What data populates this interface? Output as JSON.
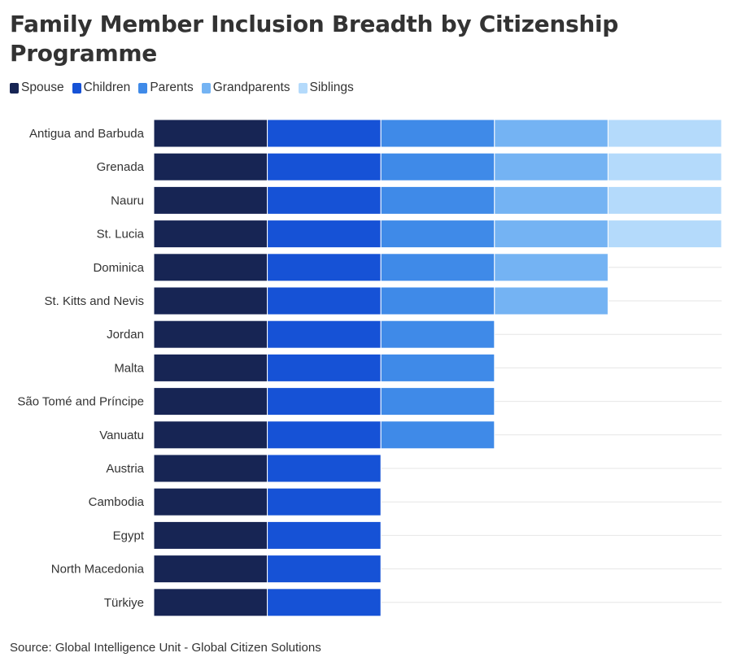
{
  "title": "Family Member Inclusion Breadth by Citizenship Programme",
  "source": "Source: Global Intelligence Unit - Global Citizen Solutions",
  "legend": [
    {
      "label": "Spouse",
      "color": "#172554"
    },
    {
      "label": "Children",
      "color": "#1652d6"
    },
    {
      "label": "Parents",
      "color": "#3f8ae8"
    },
    {
      "label": "Grandparents",
      "color": "#74b3f3"
    },
    {
      "label": "Siblings",
      "color": "#b4dafb"
    }
  ],
  "chart_data": {
    "type": "bar",
    "orientation": "horizontal",
    "stacked": true,
    "categories": [
      "Antigua and Barbuda",
      "Grenada",
      "Nauru",
      "St. Lucia",
      "Dominica",
      "St. Kitts and Nevis",
      "Jordan",
      "Malta",
      "São Tomé and Príncipe",
      "Vanuatu",
      "Austria",
      "Cambodia",
      "Egypt",
      "North Macedonia",
      "Türkiye"
    ],
    "series": [
      {
        "name": "Spouse",
        "color": "#172554",
        "values": [
          1,
          1,
          1,
          1,
          1,
          1,
          1,
          1,
          1,
          1,
          1,
          1,
          1,
          1,
          1
        ]
      },
      {
        "name": "Children",
        "color": "#1652d6",
        "values": [
          1,
          1,
          1,
          1,
          1,
          1,
          1,
          1,
          1,
          1,
          1,
          1,
          1,
          1,
          1
        ]
      },
      {
        "name": "Parents",
        "color": "#3f8ae8",
        "values": [
          1,
          1,
          1,
          1,
          1,
          1,
          1,
          1,
          1,
          1,
          0,
          0,
          0,
          0,
          0
        ]
      },
      {
        "name": "Grandparents",
        "color": "#74b3f3",
        "values": [
          1,
          1,
          1,
          1,
          1,
          1,
          0,
          0,
          0,
          0,
          0,
          0,
          0,
          0,
          0
        ]
      },
      {
        "name": "Siblings",
        "color": "#b4dafb",
        "values": [
          1,
          1,
          1,
          1,
          0,
          0,
          0,
          0,
          0,
          0,
          0,
          0,
          0,
          0,
          0
        ]
      }
    ],
    "xlim": [
      0,
      5
    ],
    "grid": true,
    "legend_position": "top-left"
  }
}
